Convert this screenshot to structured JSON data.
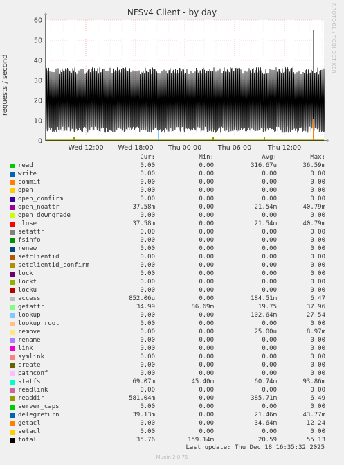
{
  "chart_data": {
    "type": "area",
    "title": "NFSv4 Client - by day",
    "ylabel": "requests / second",
    "xlabel": "",
    "ylim": [
      0,
      60
    ],
    "yticks": [
      0,
      10,
      20,
      30,
      40,
      50,
      60
    ],
    "xticks": [
      "Wed 12:00",
      "Wed 18:00",
      "Thu 00:00",
      "Thu 06:00",
      "Thu 12:00"
    ],
    "grid": true,
    "description_series": "total fluctuates between about 4 and 36 req/s through the day with a spike to about 55 near the end",
    "total_band": [
      4,
      36.5
    ],
    "total_spike": 55.13,
    "legend_headers": {
      "cur": "Cur:",
      "min": "Min:",
      "avg": "Avg:",
      "max": "Max:"
    },
    "series": [
      {
        "name": "read",
        "color": "#00cc00",
        "cur": "0.00",
        "min": "0.00",
        "avg": "316.67u",
        "max": "36.59m"
      },
      {
        "name": "write",
        "color": "#0066b3",
        "cur": "0.00",
        "min": "0.00",
        "avg": "0.00",
        "max": "0.00"
      },
      {
        "name": "commit",
        "color": "#ff8000",
        "cur": "0.00",
        "min": "0.00",
        "avg": "0.00",
        "max": "0.00"
      },
      {
        "name": "open",
        "color": "#ffcc00",
        "cur": "0.00",
        "min": "0.00",
        "avg": "0.00",
        "max": "0.00"
      },
      {
        "name": "open_confirm",
        "color": "#330099",
        "cur": "0.00",
        "min": "0.00",
        "avg": "0.00",
        "max": "0.00"
      },
      {
        "name": "open_noattr",
        "color": "#990099",
        "cur": "37.58m",
        "min": "0.00",
        "avg": "21.54m",
        "max": "40.79m"
      },
      {
        "name": "open_downgrade",
        "color": "#ccff00",
        "cur": "0.00",
        "min": "0.00",
        "avg": "0.00",
        "max": "0.00"
      },
      {
        "name": "close",
        "color": "#ff0000",
        "cur": "37.58m",
        "min": "0.00",
        "avg": "21.54m",
        "max": "40.79m"
      },
      {
        "name": "setattr",
        "color": "#808080",
        "cur": "0.00",
        "min": "0.00",
        "avg": "0.00",
        "max": "0.00"
      },
      {
        "name": "fsinfo",
        "color": "#008f00",
        "cur": "0.00",
        "min": "0.00",
        "avg": "0.00",
        "max": "0.00"
      },
      {
        "name": "renew",
        "color": "#00487d",
        "cur": "0.00",
        "min": "0.00",
        "avg": "0.00",
        "max": "0.00"
      },
      {
        "name": "setclientid",
        "color": "#b35a00",
        "cur": "0.00",
        "min": "0.00",
        "avg": "0.00",
        "max": "0.00"
      },
      {
        "name": "setclientid_confirm",
        "color": "#b38f00",
        "cur": "0.00",
        "min": "0.00",
        "avg": "0.00",
        "max": "0.00"
      },
      {
        "name": "lock",
        "color": "#6b006b",
        "cur": "0.00",
        "min": "0.00",
        "avg": "0.00",
        "max": "0.00"
      },
      {
        "name": "lockt",
        "color": "#8fb300",
        "cur": "0.00",
        "min": "0.00",
        "avg": "0.00",
        "max": "0.00"
      },
      {
        "name": "locku",
        "color": "#b30000",
        "cur": "0.00",
        "min": "0.00",
        "avg": "0.00",
        "max": "0.00"
      },
      {
        "name": "access",
        "color": "#bebebe",
        "cur": "852.06u",
        "min": "0.00",
        "avg": "184.51m",
        "max": "6.47"
      },
      {
        "name": "getattr",
        "color": "#80ff80",
        "cur": "34.99",
        "min": "86.69m",
        "avg": "19.75",
        "max": "37.96"
      },
      {
        "name": "lookup",
        "color": "#80c9ff",
        "cur": "0.00",
        "min": "0.00",
        "avg": "102.64m",
        "max": "27.54"
      },
      {
        "name": "lookup_root",
        "color": "#ffc080",
        "cur": "0.00",
        "min": "0.00",
        "avg": "0.00",
        "max": "0.00"
      },
      {
        "name": "remove",
        "color": "#ffe680",
        "cur": "0.00",
        "min": "0.00",
        "avg": "25.00u",
        "max": "8.97m"
      },
      {
        "name": "rename",
        "color": "#aa80ff",
        "cur": "0.00",
        "min": "0.00",
        "avg": "0.00",
        "max": "0.00"
      },
      {
        "name": "link",
        "color": "#ee00cc",
        "cur": "0.00",
        "min": "0.00",
        "avg": "0.00",
        "max": "0.00"
      },
      {
        "name": "symlink",
        "color": "#ff8080",
        "cur": "0.00",
        "min": "0.00",
        "avg": "0.00",
        "max": "0.00"
      },
      {
        "name": "create",
        "color": "#666600",
        "cur": "0.00",
        "min": "0.00",
        "avg": "0.00",
        "max": "0.00"
      },
      {
        "name": "pathconf",
        "color": "#ffbfff",
        "cur": "0.00",
        "min": "0.00",
        "avg": "0.00",
        "max": "0.00"
      },
      {
        "name": "statfs",
        "color": "#00ffcc",
        "cur": "69.07m",
        "min": "45.40m",
        "avg": "60.74m",
        "max": "93.86m"
      },
      {
        "name": "readlink",
        "color": "#cc6699",
        "cur": "0.00",
        "min": "0.00",
        "avg": "0.00",
        "max": "0.00"
      },
      {
        "name": "readdir",
        "color": "#999900",
        "cur": "581.04m",
        "min": "0.00",
        "avg": "385.71m",
        "max": "6.49"
      },
      {
        "name": "server_caps",
        "color": "#00cc00",
        "cur": "0.00",
        "min": "0.00",
        "avg": "0.00",
        "max": "0.00"
      },
      {
        "name": "delegreturn",
        "color": "#0066b3",
        "cur": "39.13m",
        "min": "0.00",
        "avg": "21.46m",
        "max": "43.77m"
      },
      {
        "name": "getacl",
        "color": "#ff8000",
        "cur": "0.00",
        "min": "0.00",
        "avg": "34.64m",
        "max": "12.24"
      },
      {
        "name": "setacl",
        "color": "#ffcc00",
        "cur": "0.00",
        "min": "0.00",
        "avg": "0.00",
        "max": "0.00"
      },
      {
        "name": "total",
        "color": "#000000",
        "cur": "35.76",
        "min": "159.14m",
        "avg": "20.59",
        "max": "55.13"
      }
    ]
  },
  "last_update": "Last update:  Thu Dec 18 16:35:32 2025",
  "vendor": "RRDTOOL / TOBI OETIKER",
  "footer": "Munin 2.0.76",
  "colors": {
    "background": "#f0f0f0",
    "plot_bg": "#ffffff",
    "major_grid": "#ff9999",
    "minor_grid": "#e0e0e0"
  }
}
